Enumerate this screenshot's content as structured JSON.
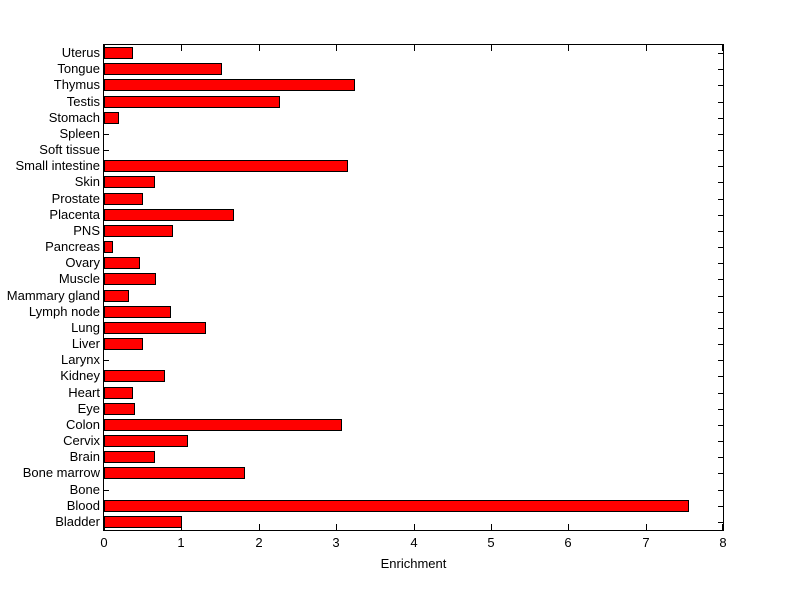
{
  "chart_data": {
    "type": "bar",
    "orientation": "horizontal",
    "title": "",
    "xlabel": "Enrichment",
    "ylabel": "",
    "xlim": [
      0,
      8
    ],
    "xticks": [
      0,
      1,
      2,
      3,
      4,
      5,
      6,
      7,
      8
    ],
    "grid": false,
    "legend": false,
    "bar_color": "#ff0000",
    "bar_edge_color": "#000000",
    "axis_color": "#000000",
    "background_color": "#ffffff",
    "categories": [
      "Uterus",
      "Tongue",
      "Thymus",
      "Testis",
      "Stomach",
      "Spleen",
      "Soft tissue",
      "Small intestine",
      "Skin",
      "Prostate",
      "Placenta",
      "PNS",
      "Pancreas",
      "Ovary",
      "Muscle",
      "Mammary gland",
      "Lymph node",
      "Lung",
      "Liver",
      "Larynx",
      "Kidney",
      "Heart",
      "Eye",
      "Colon",
      "Cervix",
      "Brain",
      "Bone marrow",
      "Bone",
      "Blood",
      "Bladder"
    ],
    "values": [
      0.37,
      1.53,
      3.24,
      2.28,
      0.2,
      0,
      0,
      3.15,
      0.66,
      0.5,
      1.68,
      0.89,
      0.11,
      0.46,
      0.67,
      0.32,
      0.86,
      1.32,
      0.51,
      0,
      0.79,
      0.38,
      0.4,
      3.08,
      1.08,
      0.66,
      1.82,
      0,
      7.56,
      1.01
    ]
  }
}
